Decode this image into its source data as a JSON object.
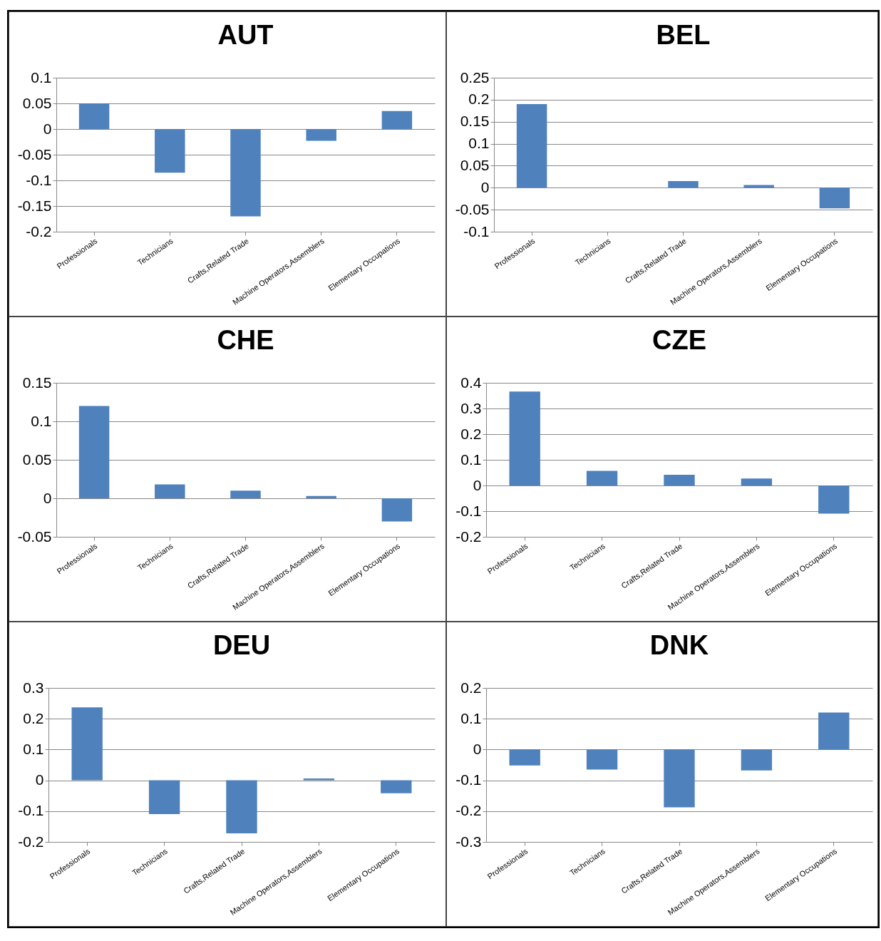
{
  "chart_data": [
    {
      "type": "bar",
      "title": "AUT",
      "categories": [
        "Professionals",
        "Technicians",
        "Crafts,Related Trade",
        "Machine Operators,Assemblers",
        "Elementary Occupations"
      ],
      "values": [
        0.05,
        -0.085,
        -0.17,
        -0.023,
        0.035
      ],
      "color": "#4f81bd",
      "ylim": [
        -0.2,
        0.1
      ],
      "yticks": [
        -0.2,
        -0.15,
        -0.1,
        -0.05,
        0,
        0.05,
        0.1
      ],
      "grid": "y"
    },
    {
      "type": "bar",
      "title": "BEL",
      "categories": [
        "Professionals",
        "Technicians",
        "Crafts,Related Trade",
        "Machine Operators,Assemblers",
        "Elementary Occupations"
      ],
      "values": [
        0.19,
        0,
        0.015,
        0.006,
        -0.047
      ],
      "color": "#4f81bd",
      "ylim": [
        -0.1,
        0.25
      ],
      "yticks": [
        -0.1,
        -0.05,
        0,
        0.05,
        0.1,
        0.15,
        0.2,
        0.25
      ],
      "grid": "y"
    },
    {
      "type": "bar",
      "title": "CHE",
      "categories": [
        "Professionals",
        "Technicians",
        "Crafts,Related Trade",
        "Machine Operators,Assemblers",
        "Elementary Occupations"
      ],
      "values": [
        0.12,
        0.018,
        0.01,
        0.003,
        -0.03
      ],
      "color": "#4f81bd",
      "ylim": [
        -0.05,
        0.15
      ],
      "yticks": [
        -0.05,
        0,
        0.05,
        0.1,
        0.15
      ],
      "grid": "y"
    },
    {
      "type": "bar",
      "title": "CZE",
      "categories": [
        "Professionals",
        "Technicians",
        "Crafts,Related Trade",
        "Machine Operators,Assemblers",
        "Elementary Occupations"
      ],
      "values": [
        0.366,
        0.057,
        0.042,
        0.027,
        -0.11
      ],
      "color": "#4f81bd",
      "ylim": [
        -0.2,
        0.4
      ],
      "yticks": [
        -0.2,
        -0.1,
        0,
        0.1,
        0.2,
        0.3,
        0.4
      ],
      "grid": "y"
    },
    {
      "type": "bar",
      "title": "DEU",
      "categories": [
        "Professionals",
        "Technicians",
        "Crafts,Related Trade",
        "Machine Operators,Assemblers",
        "Elementary Occupations"
      ],
      "values": [
        0.237,
        -0.11,
        -0.172,
        0.006,
        -0.042
      ],
      "color": "#4f81bd",
      "ylim": [
        -0.2,
        0.3
      ],
      "yticks": [
        -0.2,
        -0.1,
        0,
        0.1,
        0.2,
        0.3
      ],
      "grid": "y"
    },
    {
      "type": "bar",
      "title": "DNK",
      "categories": [
        "Professionals",
        "Technicians",
        "Crafts,Related Trade",
        "Machine Operators,Assemblers",
        "Elementary Occupations"
      ],
      "values": [
        -0.052,
        -0.065,
        -0.188,
        -0.068,
        0.12
      ],
      "color": "#4f81bd",
      "ylim": [
        -0.3,
        0.2
      ],
      "yticks": [
        -0.3,
        -0.2,
        -0.1,
        0,
        0.1,
        0.2
      ],
      "grid": "y"
    }
  ]
}
